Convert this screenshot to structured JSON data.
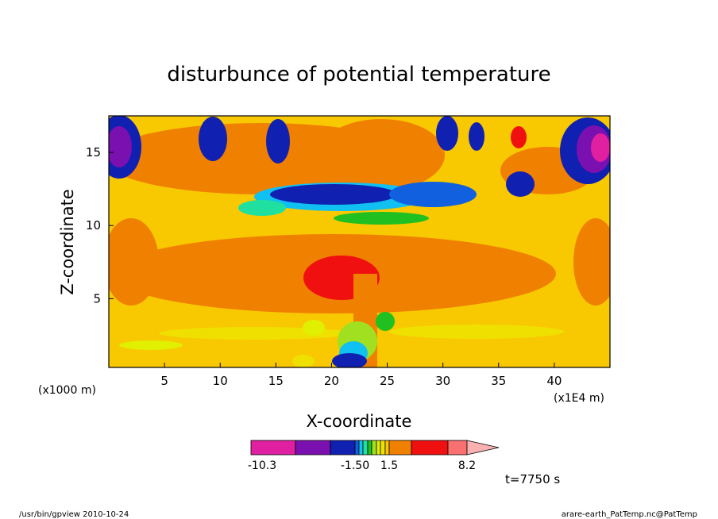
{
  "chart_data": {
    "type": "heatmap",
    "title": "disturbunce of potential temperature",
    "xlabel": "X-coordinate",
    "ylabel": "Z-coordinate",
    "x_unit_left": "(x1000 m)",
    "x_unit_right": "(x1E4 m)",
    "xlim": [
      0,
      45
    ],
    "ylim": [
      0.3,
      17.5
    ],
    "xticks": [
      "5",
      "10",
      "15",
      "20",
      "25",
      "30",
      "35",
      "40"
    ],
    "yticks": [
      "5",
      "10",
      "15"
    ],
    "colorbar": {
      "labels": [
        "-10.3",
        "-1.50",
        "1.5",
        "8.2"
      ],
      "colors": [
        "#e020a0",
        "#7a10b0",
        "#1020b0",
        "#1060e0",
        "#10c0f0",
        "#20e0a0",
        "#20c020",
        "#a0e020",
        "#e0f000",
        "#f0e000",
        "#f8c800",
        "#f08000",
        "#f01010",
        "#f87070",
        "#f8b0b0"
      ]
    },
    "time_label": "t=7750 s"
  },
  "footer": {
    "left": "/usr/bin/gpview   2010-10-24",
    "right": "arare-earth_PatTemp.nc@PatTemp"
  }
}
